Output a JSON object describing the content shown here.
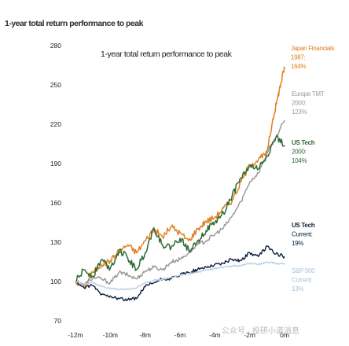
{
  "page_title": "1-year total return performance to peak",
  "watermark": "公众号 · 投研小道消息",
  "colors": {
    "japan_financials": "#e07f1f",
    "europe_tmt": "#9a9a9a",
    "us_tech_2000": "#2e6b35",
    "us_tech_current": "#0c1f3f",
    "sp500_current": "#bcd1e2"
  },
  "chart_data": {
    "type": "line",
    "title": "1-year total return performance to peak",
    "y_ticks": [
      70,
      100,
      130,
      160,
      190,
      220,
      250,
      280
    ],
    "ylim": [
      70,
      280
    ],
    "x_ticks": [
      "-12m",
      "-10m",
      "-8m",
      "-6m",
      "-4m",
      "-2m",
      "0m"
    ],
    "xlim": [
      -12,
      0
    ],
    "grid": false,
    "legend": "annotations at right",
    "series": [
      {
        "key": "japan_financials",
        "name": "Japan Financials 1987",
        "label_lines": [
          "Japan Financials",
          "1987:",
          "164%"
        ],
        "color": "#e07f1f",
        "x": [
          -12,
          -11.5,
          -11,
          -10.5,
          -10,
          -9.5,
          -9,
          -8.5,
          -8,
          -7.5,
          -7,
          -6.5,
          -6,
          -5.5,
          -5,
          -4.5,
          -4,
          -3.5,
          -3,
          -2.5,
          -2,
          -1.5,
          -1,
          -0.7,
          -0.4,
          -0.2,
          0
        ],
        "y": [
          100,
          96,
          107,
          113,
          116,
          123,
          128,
          122,
          131,
          140,
          134,
          142,
          137,
          131,
          140,
          146,
          149,
          156,
          162,
          176,
          189,
          193,
          198,
          222,
          240,
          252,
          264
        ]
      },
      {
        "key": "europe_tmt",
        "name": "Europe TMT 2000",
        "label_lines": [
          "Europe TMT",
          "2000:",
          "123%"
        ],
        "color": "#9a9a9a",
        "x": [
          -12,
          -11.5,
          -11,
          -10.5,
          -10,
          -9.5,
          -9,
          -8.5,
          -8,
          -7.5,
          -7,
          -6.5,
          -6,
          -5.5,
          -5,
          -4.5,
          -4,
          -3.5,
          -3,
          -2.5,
          -2,
          -1.5,
          -1,
          -0.5,
          0
        ],
        "y": [
          100,
          97,
          103,
          102,
          99,
          107,
          105,
          102,
          108,
          111,
          109,
          115,
          117,
          122,
          128,
          131,
          136,
          141,
          150,
          161,
          176,
          183,
          198,
          210,
          223
        ]
      },
      {
        "key": "us_tech_2000",
        "name": "US Tech 2000",
        "label_lines": [
          "US Tech",
          "2000:",
          "104%"
        ],
        "color": "#2e6b35",
        "x": [
          -12,
          -11.5,
          -11,
          -10.5,
          -10,
          -9.5,
          -9,
          -8.5,
          -8,
          -7.5,
          -7,
          -6.5,
          -6,
          -5.5,
          -5,
          -4.5,
          -4,
          -3.5,
          -3,
          -2.5,
          -2,
          -1.5,
          -1,
          -0.5,
          0
        ],
        "y": [
          100,
          109,
          104,
          117,
          110,
          124,
          118,
          109,
          122,
          141,
          128,
          126,
          133,
          124,
          131,
          139,
          145,
          152,
          166,
          179,
          188,
          186,
          196,
          210,
          204
        ]
      },
      {
        "key": "us_tech_current",
        "name": "US Tech Current",
        "label_lines": [
          "US Tech",
          "Current:",
          "19%"
        ],
        "color": "#0c1f3f",
        "x": [
          -12,
          -11.5,
          -11,
          -10.5,
          -10,
          -9.5,
          -9,
          -8.5,
          -8,
          -7.5,
          -7,
          -6.5,
          -6,
          -5.5,
          -5,
          -4.5,
          -4,
          -3.5,
          -3,
          -2.5,
          -2,
          -1.5,
          -1,
          -0.5,
          0
        ],
        "y": [
          100,
          95,
          97,
          90,
          89,
          87,
          86,
          87,
          96,
          99,
          102,
          102,
          105,
          107,
          109,
          111,
          113,
          114,
          117,
          116,
          122,
          119,
          127,
          121,
          119
        ]
      },
      {
        "key": "sp500_current",
        "name": "S&P 500 Current",
        "label_lines": [
          "S&P 500",
          "Current:",
          "13%"
        ],
        "color": "#bcd1e2",
        "x": [
          -12,
          -11.5,
          -11,
          -10.5,
          -10,
          -9.5,
          -9,
          -8.5,
          -8,
          -7.5,
          -7,
          -6.5,
          -6,
          -5.5,
          -5,
          -4.5,
          -4,
          -3.5,
          -3,
          -2.5,
          -2,
          -1.5,
          -1,
          -0.5,
          0
        ],
        "y": [
          100,
          98,
          99,
          96,
          95,
          94,
          94,
          95,
          99,
          101,
          102,
          103,
          105,
          106,
          107,
          109,
          110,
          111,
          112,
          112,
          114,
          113,
          115,
          114,
          113
        ]
      }
    ]
  }
}
